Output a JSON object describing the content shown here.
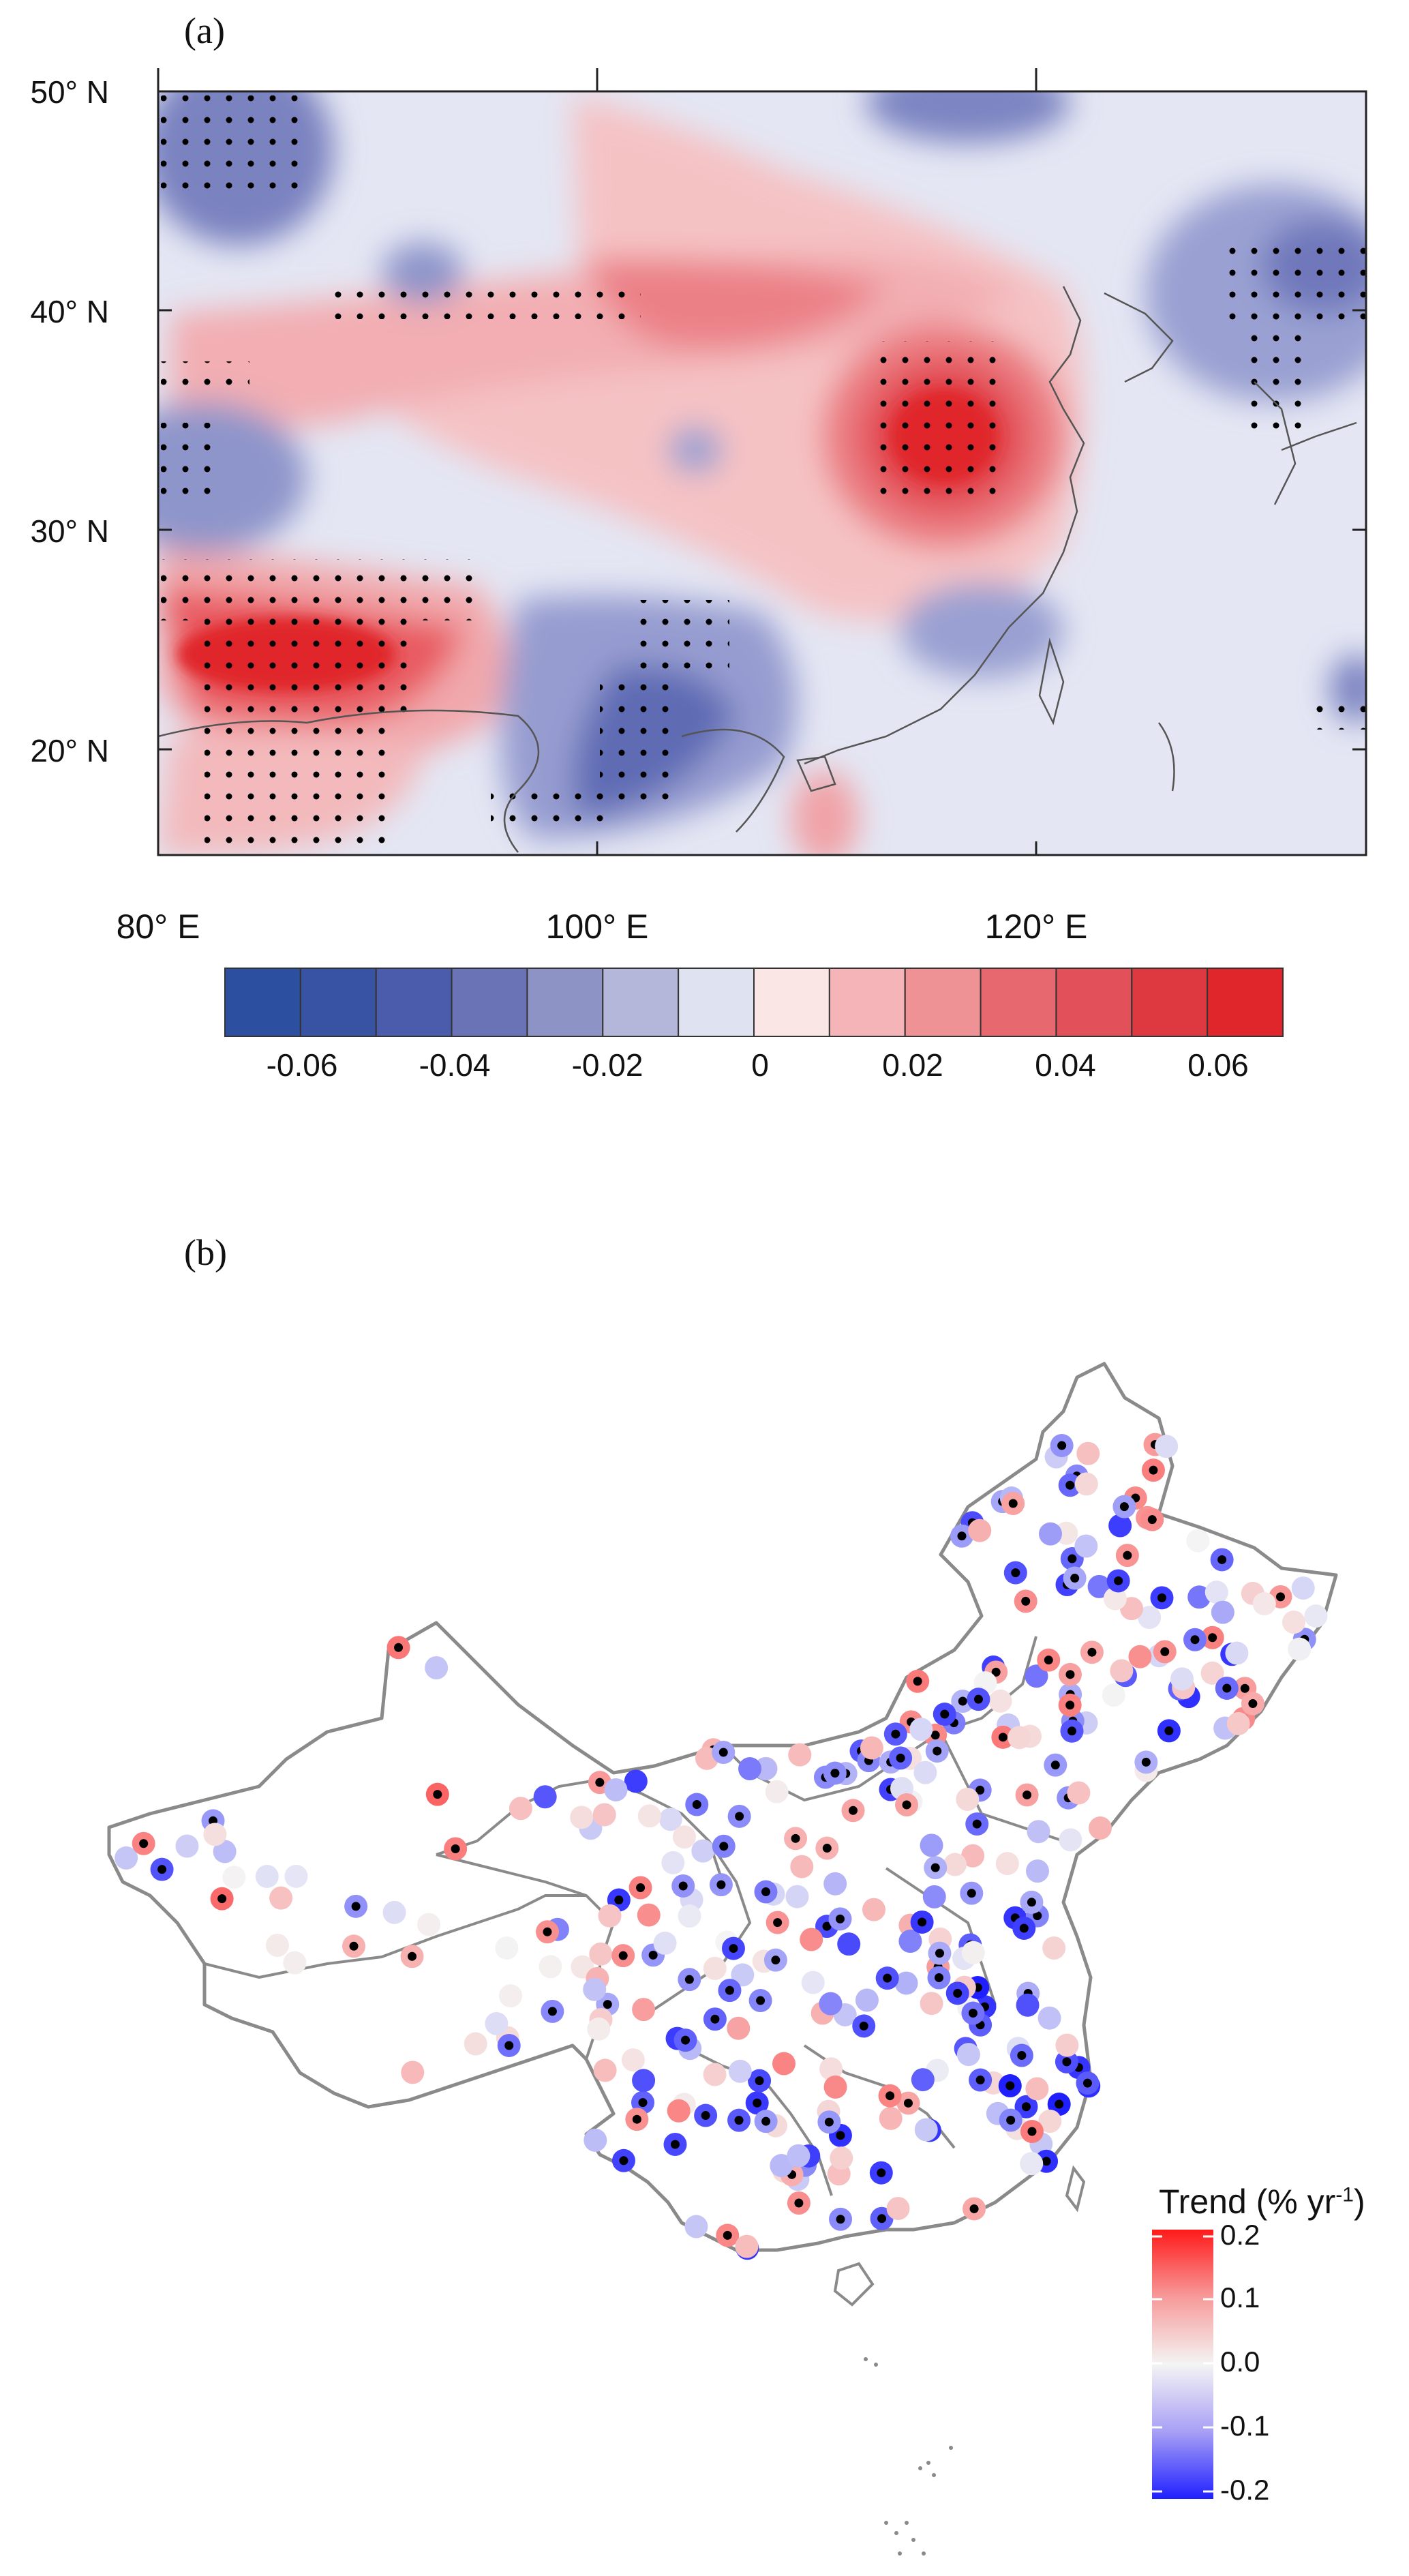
{
  "panel_a": {
    "label": "(a)",
    "lat_labels": [
      "50° N",
      "40° N",
      "30° N",
      "20° N"
    ],
    "lon_labels": [
      "80° E",
      "100° E",
      "120° E"
    ],
    "colorbar": {
      "tick_labels": [
        "-0.06",
        "-0.04",
        "-0.02",
        "0",
        "0.02",
        "0.04",
        "0.06"
      ],
      "colors": [
        "#2c4fa0",
        "#3853a4",
        "#4a5cab",
        "#6a73b6",
        "#8e93c6",
        "#b4b7da",
        "#dfe2f1",
        "#fbe6e6",
        "#f5b5b8",
        "#ef9296",
        "#e86870",
        "#e2505a",
        "#de3840",
        "#e0262b"
      ]
    }
  },
  "panel_b": {
    "label": "(b)",
    "legend_title": "Trend (% yr",
    "legend_sup": "-1",
    "legend_close": ")",
    "legend_ticks": [
      "0.2",
      "0.1",
      "0.0",
      "-0.1",
      "-0.2"
    ],
    "colors": {
      "high": "#ff1a1a",
      "mid": "#f4f4f4",
      "low": "#2020ff"
    }
  }
}
